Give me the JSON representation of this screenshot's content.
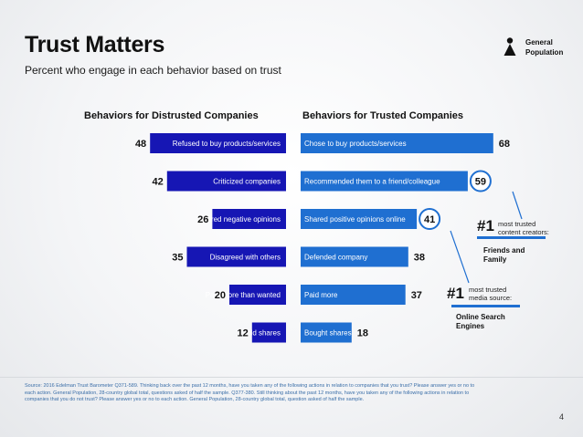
{
  "title": "Trust Matters",
  "subtitle": "Percent who engage in each behavior based on trust",
  "legend": {
    "label_line1": "General",
    "label_line2": "Population",
    "icon": "person-icon"
  },
  "colors": {
    "distrusted": "#1616b4",
    "trusted": "#1f6fd1",
    "highlight_circle": "#1f6fd1"
  },
  "chart_data": {
    "type": "bar",
    "orientation": "horizontal-butterfly",
    "title": "Trust Matters",
    "series": [
      {
        "name": "Behaviors for Distrusted Companies",
        "labels": [
          "Refused to buy products/services",
          "Criticized companies",
          "Shared negative opinions",
          "Disagreed with others",
          "Paid more than wanted",
          "Sold shares"
        ],
        "values": [
          48,
          42,
          26,
          35,
          20,
          12
        ]
      },
      {
        "name": "Behaviors for Trusted Companies",
        "labels": [
          "Chose to buy products/services",
          "Recommended them to a friend/colleague",
          "Shared positive opinions online",
          "Defended company",
          "Paid more",
          "Bought shares"
        ],
        "values": [
          68,
          59,
          41,
          38,
          37,
          18
        ],
        "highlighted": [
          1,
          2
        ]
      }
    ],
    "xlim": [
      0,
      70
    ]
  },
  "callouts": [
    {
      "rank": "#1",
      "text_line1": "most trusted",
      "text_line2": "content creators:",
      "label_line1": "Friends and",
      "label_line2": "Family"
    },
    {
      "rank": "#1",
      "text_line1": "most trusted",
      "text_line2": "media source:",
      "label_line1": "Online Search",
      "label_line2": "Engines"
    }
  ],
  "source": "Source: 2016 Edelman Trust Barometer Q371-589. Thinking back over the past 12 months, have you taken any of the following actions in relation to companies that you trust? Please answer yes or no to each action. General Population, 28-country global total, questions asked of half the sample. Q377-380. Still thinking about the past 12 months, have you taken any of the following actions in relation to companies that you do not trust? Please answer yes or no to each action. General Population, 28-country global total, question asked of half the sample.",
  "page_number": "4"
}
